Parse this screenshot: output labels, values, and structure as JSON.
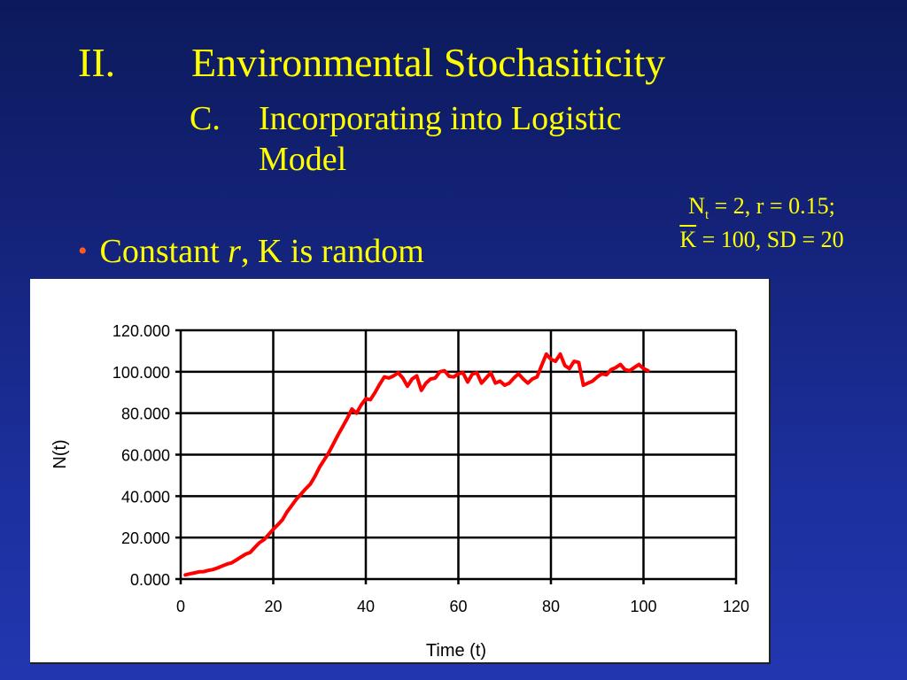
{
  "slide": {
    "title_num": "II.",
    "title": "Environmental Stochasiticity",
    "sub_num": "C.",
    "sub_line1": "Incorporating into Logistic",
    "sub_line2": "Model",
    "params_n": "N",
    "params_t": "t",
    "params_rest1": " = 2, r = 0.15;",
    "params_k": "K",
    "params_rest2": " = 100, SD = 20",
    "bullet_pre": "Constant ",
    "bullet_r": "r",
    "bullet_post": ", K is random",
    "colors": {
      "title": "#ffff00",
      "bullet_dot": "#ff5a1f",
      "series": "#ff0000",
      "background": "#1c2f9c"
    }
  },
  "chart_data": {
    "type": "line",
    "xlabel": "Time (t)",
    "ylabel": "N(t)",
    "xlim": [
      0,
      120
    ],
    "ylim": [
      0,
      120
    ],
    "xticks": [
      0,
      20,
      40,
      60,
      80,
      100,
      120
    ],
    "xtick_labels": [
      "0",
      "20",
      "40",
      "60",
      "80",
      "100",
      "120"
    ],
    "yticks": [
      0,
      20,
      40,
      60,
      80,
      100,
      120
    ],
    "ytick_labels": [
      "0.000",
      "20.000",
      "40.000",
      "60.000",
      "80.000",
      "100.000",
      "120.000"
    ],
    "grid": true,
    "legend": "none",
    "series": [
      {
        "color": "#ff0000",
        "x": [
          1,
          2,
          3,
          4,
          5,
          6,
          7,
          8,
          9,
          10,
          11,
          12,
          13,
          14,
          15,
          16,
          17,
          18,
          19,
          20,
          21,
          22,
          23,
          24,
          25,
          26,
          27,
          28,
          29,
          30,
          31,
          32,
          33,
          34,
          35,
          36,
          37,
          38,
          39,
          40,
          41,
          42,
          43,
          44,
          45,
          46,
          47,
          48,
          49,
          50,
          51,
          52,
          53,
          54,
          55,
          56,
          57,
          58,
          59,
          60,
          61,
          62,
          63,
          64,
          65,
          66,
          67,
          68,
          69,
          70,
          71,
          72,
          73,
          74,
          75,
          76,
          77,
          78,
          79,
          80,
          81,
          82,
          83,
          84,
          85,
          86,
          87,
          88,
          89,
          90,
          91,
          92,
          93,
          94,
          95,
          96,
          97,
          98,
          99,
          100,
          101
        ],
        "y": [
          2.0,
          2.5,
          3.0,
          3.5,
          3.6,
          4.2,
          4.6,
          5.4,
          6.3,
          7.2,
          7.8,
          9.2,
          10.6,
          12.0,
          12.8,
          15.2,
          17.5,
          19.0,
          21.5,
          24.0,
          26.2,
          28.6,
          32.5,
          35.5,
          38.5,
          41.0,
          43.5,
          45.8,
          49.5,
          54.0,
          57.5,
          61.0,
          65.2,
          69.5,
          73.5,
          77.5,
          82.0,
          80.0,
          84.0,
          87.0,
          86.5,
          90.0,
          94.0,
          97.5,
          97.0,
          98.0,
          99.5,
          97.0,
          93.0,
          96.5,
          98.0,
          91.0,
          94.5,
          96.5,
          97.0,
          100.0,
          100.5,
          97.8,
          97.5,
          99.0,
          99.5,
          95.0,
          98.8,
          99.5,
          94.5,
          97.0,
          99.5,
          94.5,
          95.5,
          93.5,
          94.5,
          97.0,
          99.0,
          96.5,
          94.5,
          96.5,
          97.5,
          103.0,
          108.5,
          106.0,
          105.0,
          108.5,
          103.0,
          101.5,
          105.0,
          104.5,
          93.5,
          94.5,
          95.5,
          97.5,
          99.0,
          98.5,
          101.0,
          102.0,
          103.5,
          101.0,
          100.5,
          102.0,
          103.5,
          101.5,
          100.5
        ]
      }
    ]
  }
}
